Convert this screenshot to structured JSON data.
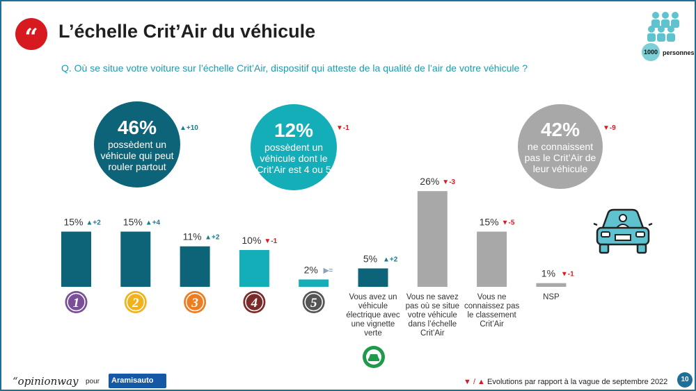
{
  "title": "L’échelle Crit’Air du véhicule",
  "title_badge": "“",
  "question": "Q. Où se situe votre voiture sur l’échelle Crit’Air, dispositif qui atteste de la qualité de l’air de votre véhicule ?",
  "panel": {
    "count": "1000",
    "label": "personnes",
    "icon": "people-group-icon"
  },
  "summaries": [
    {
      "pct": "46%",
      "text": "possèdent un véhicule qui peut rouler partout",
      "evolution": "+10",
      "direction": "up",
      "color": "#0d6479"
    },
    {
      "pct": "12%",
      "text": "possèdent un véhicule dont le Crit’Air est 4 ou 5",
      "evolution": "-1",
      "direction": "down",
      "color": "#14aeb8"
    },
    {
      "pct": "42%",
      "text": "ne connaissent pas le Crit’Air de leur véhicule",
      "evolution": "-9",
      "direction": "down",
      "color": "#a8a8a8"
    }
  ],
  "chart_data": {
    "type": "bar",
    "categories": [
      "1",
      "2",
      "3",
      "4",
      "5",
      "Vous avez un véhicule électrique avec une vignette verte",
      "Vous ne savez pas où se situe votre véhicule dans l’échelle Crit’Air",
      "Vous ne connaissez pas le classement Crit’Air",
      "NSP"
    ],
    "values": [
      15,
      15,
      11,
      10,
      2,
      5,
      26,
      15,
      1
    ],
    "labels": [
      "15%",
      "15%",
      "11%",
      "10%",
      "2%",
      "5%",
      "26%",
      "15%",
      "1%"
    ],
    "evolutions": [
      "+2",
      "+4",
      "+2",
      "-1",
      "=",
      "+2",
      "-3",
      "-5",
      "-1"
    ],
    "evolution_directions": [
      "up",
      "up",
      "up",
      "down",
      "eq",
      "up",
      "down",
      "down",
      "down"
    ],
    "bar_colors": [
      "#0d6479",
      "#0d6479",
      "#0d6479",
      "#14aeb8",
      "#14aeb8",
      "#0d6479",
      "#a8a8a8",
      "#a8a8a8",
      "#a8a8a8"
    ],
    "badge_colors": [
      "#7a4f97",
      "#f2b21b",
      "#ee7d22",
      "#7b2a2a",
      "#555555",
      "",
      "",
      "",
      ""
    ],
    "ylim": [
      0,
      30
    ],
    "grid": false,
    "legend": "none"
  },
  "evolution_colors": {
    "up": "#1a7a90",
    "down": "#d71920",
    "eq": "#8da3b5"
  },
  "evolution_arrows": {
    "up": "▲",
    "down": "▼",
    "eq": "▶"
  },
  "footer": {
    "brand": "“opinionway",
    "pour": "pour",
    "client": "Aramisauto",
    "note": "Evolutions par rapport à la vague de septembre 2022",
    "note_arrows": "▼ / ▲",
    "page": "10"
  }
}
